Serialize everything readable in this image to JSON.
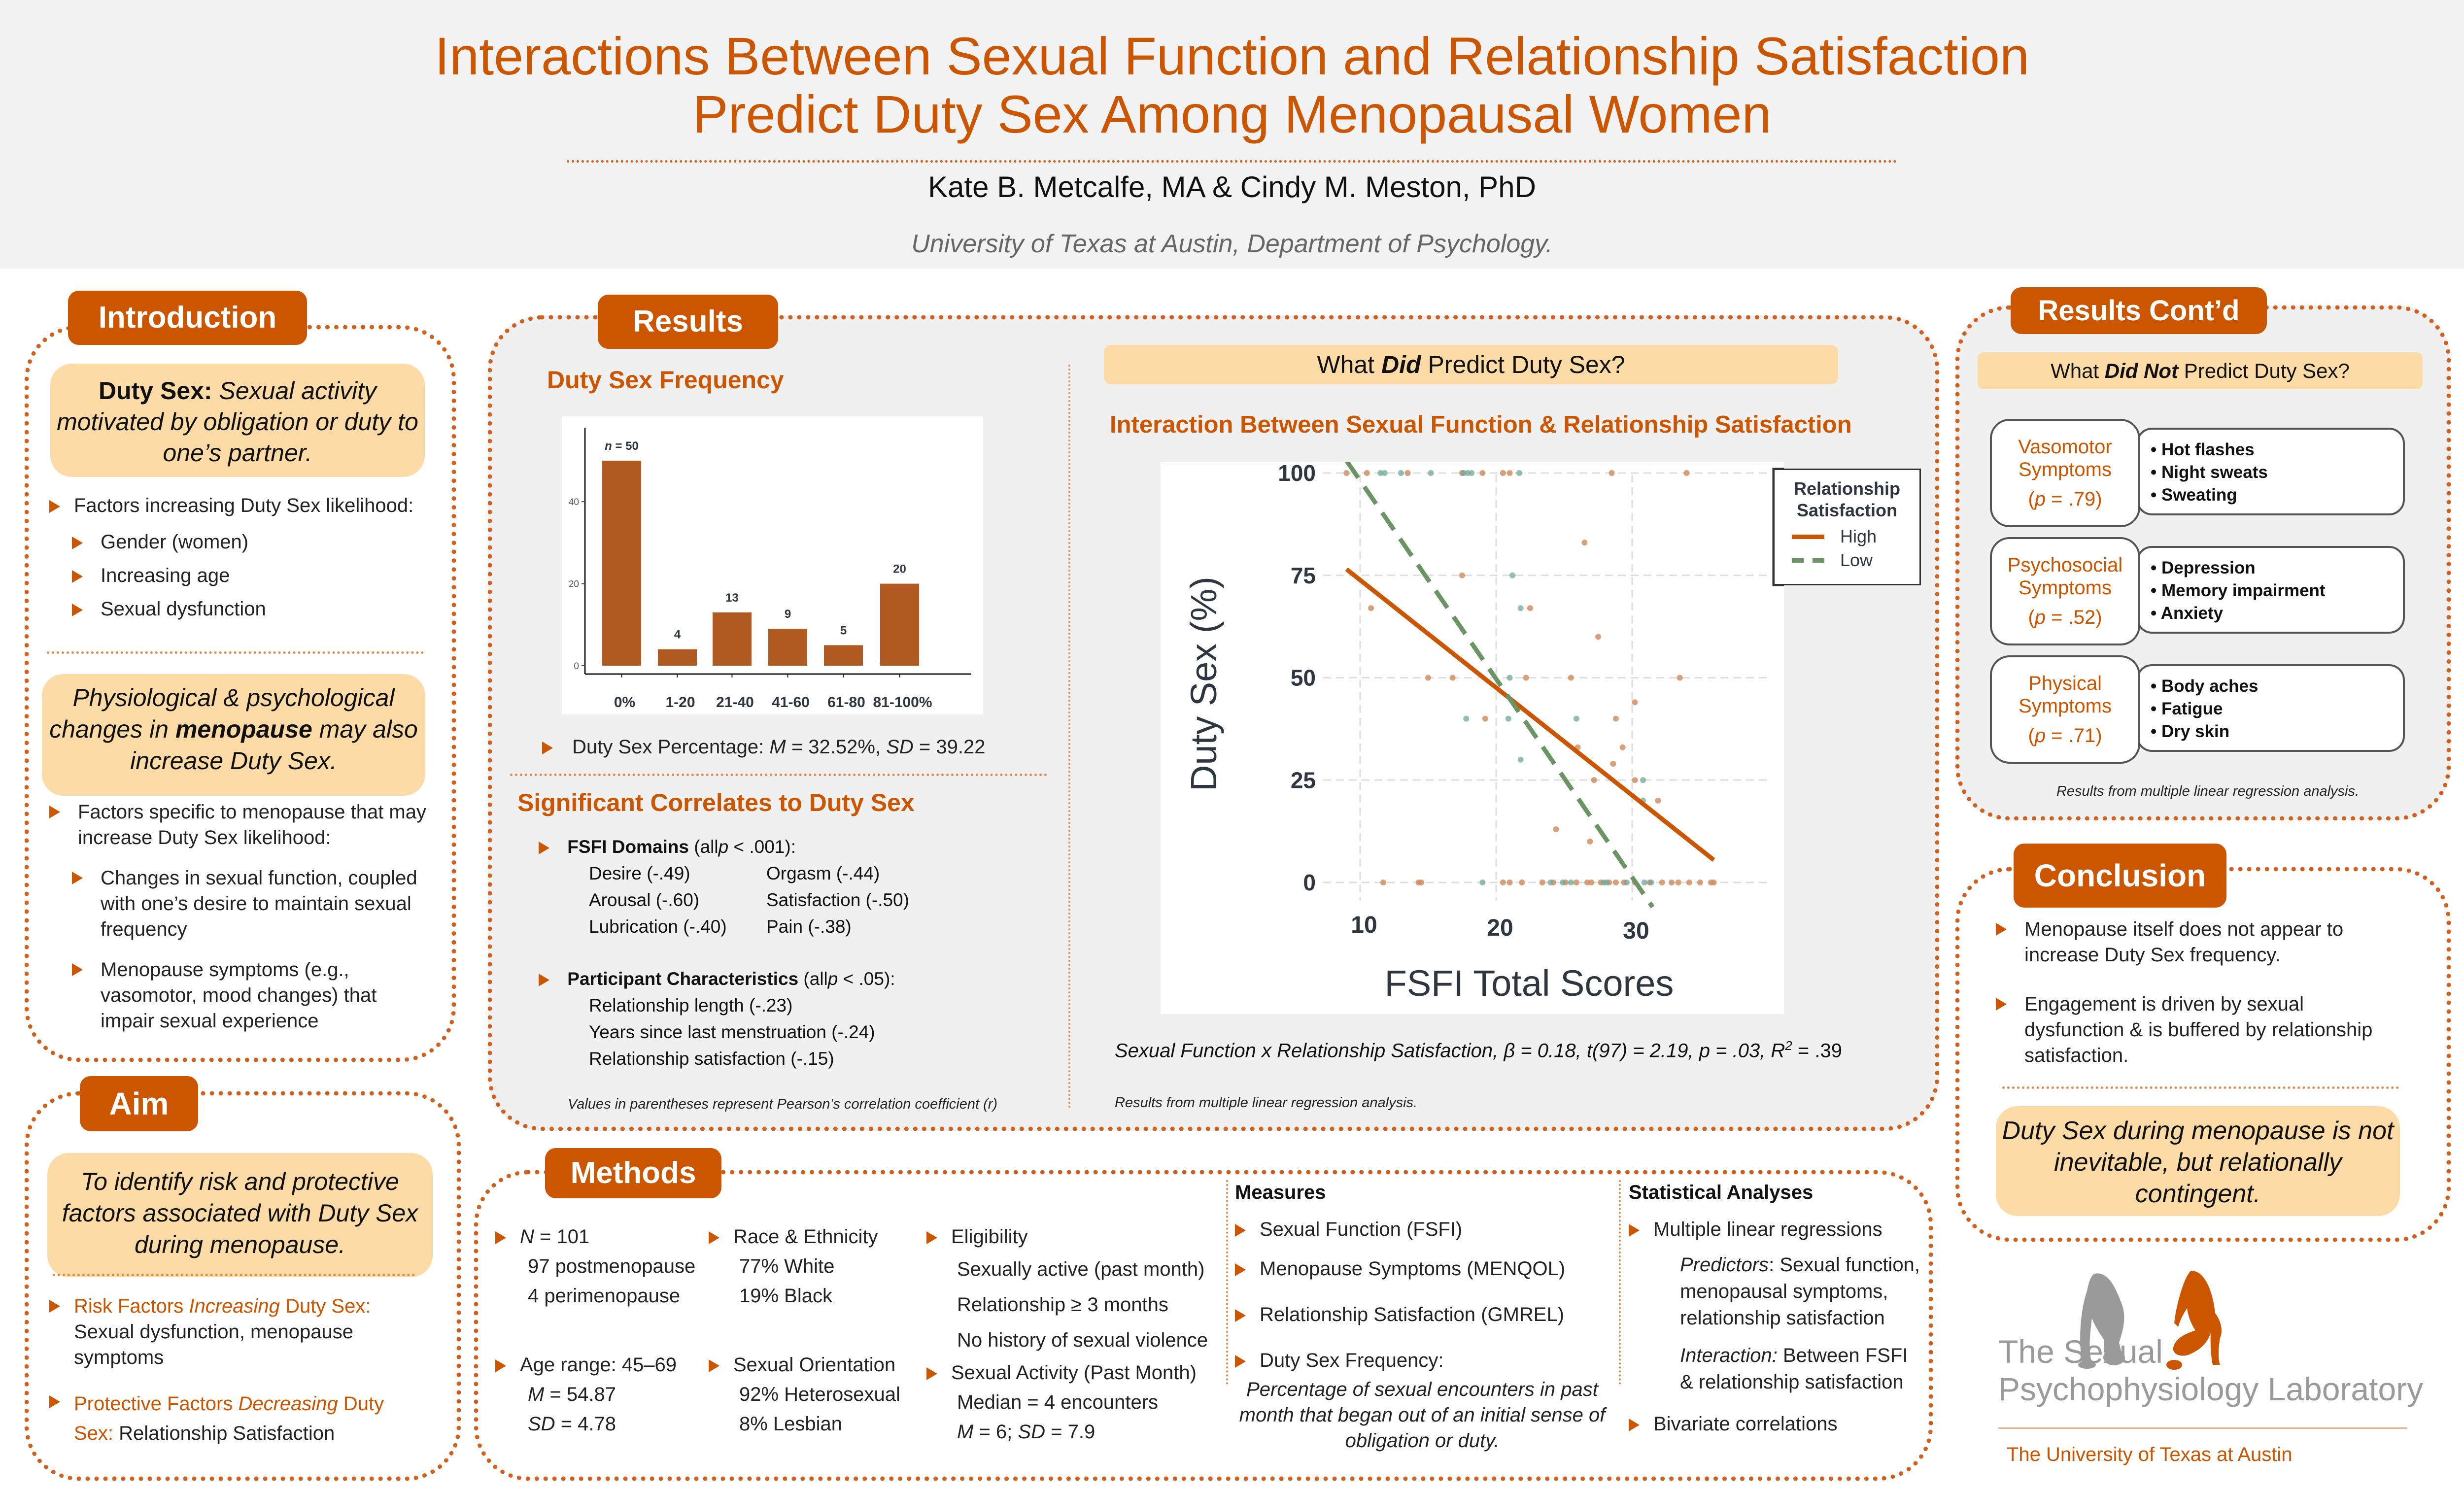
{
  "header": {
    "title_line1": "Interactions Between Sexual Function and Relationship Satisfaction",
    "title_line2": "Predict Duty Sex Among Menopausal Women",
    "authors": "Kate B. Metcalfe, MA & Cindy M. Meston, PhD",
    "affiliation": "University of Texas at Austin, Department of Psychology."
  },
  "colors": {
    "accent": "#cc5500",
    "callout": "#fddba6",
    "panel_gray": "#f0f0f0",
    "low_line": "#6b9465",
    "high_line": "#cc5500"
  },
  "introduction": {
    "tag": "Introduction",
    "definition_term": "Duty Sex:",
    "definition_text": "Sexual activity motivated by obligation or duty to one’s partner.",
    "factors_heading": "Factors increasing Duty Sex likelihood:",
    "factors": [
      "Gender (women)",
      "Increasing age",
      "Sexual dysfunction"
    ],
    "menopause_callout_pre": "Physiological & psychological changes in",
    "menopause_callout_bold": "menopause",
    "menopause_callout_post": "may also increase Duty Sex.",
    "specific_heading": "Factors specific to menopause that may increase Duty Sex likelihood:",
    "specific_factors": [
      "Changes in sexual function, coupled with one’s desire to maintain sexual frequency",
      "Menopause symptoms (e.g., vasomotor, mood changes) that impair sexual experience"
    ]
  },
  "aim": {
    "tag": "Aim",
    "callout": "To identify risk and protective factors associated with Duty Sex during menopause.",
    "risk_label_pre": "Risk Factors",
    "risk_label_ital": "Increasing",
    "risk_label_post": "Duty Sex:",
    "risk_text": "Sexual dysfunction, menopause symptoms",
    "protect_label_pre": "Protective Factors",
    "protect_label_ital": "Decreasing",
    "protect_label_post": "Duty Sex:",
    "protect_text": "Relationship Satisfaction"
  },
  "results": {
    "tag": "Results",
    "freq_heading": "Duty Sex Frequency",
    "freq_stat_pre": "Duty Sex Percentage:",
    "freq_stat_m_label": "M",
    "freq_stat_m": "= 32.52%,",
    "freq_stat_sd_label": "SD",
    "freq_stat_sd": "= 39.22",
    "corr_heading": "Significant Correlates to Duty Sex",
    "fsfi_heading_bold": "FSFI Domains",
    "fsfi_heading_rest_pre": "(all",
    "fsfi_heading_p": "p",
    "fsfi_heading_rest_post": "< .001):",
    "fsfi_items": [
      "Desire (-.49)",
      "Orgasm (-.44)",
      "Arousal (-.60)",
      "Satisfaction (-.50)",
      "Lubrication (-.40)",
      "Pain (-.38)"
    ],
    "pc_heading_bold": "Participant Characteristics",
    "pc_heading_rest_pre": "(all",
    "pc_heading_p": "p",
    "pc_heading_rest_post": "< .05):",
    "pc_items": [
      "Relationship length (-.23)",
      "Years since last menstruation (-.24)",
      "Relationship satisfaction (-.15)"
    ],
    "corr_note": "Values in parentheses represent Pearson’s correlation coefficient (r)",
    "did_pre": "What",
    "did_bold": "Did",
    "did_post": "Predict Duty Sex?",
    "interaction_heading": "Interaction Between Sexual Function & Relationship Satisfaction",
    "stat_line": "Sexual Function x Relationship Satisfaction, β = 0.18, t(97) = 2.19, p = .03, R",
    "stat_sup": "2",
    "stat_end": " = .39",
    "regression_note": "Results from multiple linear regression analysis."
  },
  "chart_data": [
    {
      "type": "bar",
      "title": "Duty Sex Frequency",
      "categories": [
        "0%",
        "1-20",
        "21-40",
        "41-60",
        "61-80",
        "81-100%"
      ],
      "values": [
        50,
        4,
        13,
        9,
        5,
        20
      ],
      "data_labels": [
        "n = 50",
        "4",
        "13",
        "9",
        "5",
        "20"
      ],
      "first_label_ital": "n",
      "first_label_rest": " = 50",
      "yticks": [
        0,
        20,
        40
      ],
      "ylim": [
        0,
        55
      ],
      "bar_color": "#b05a22"
    },
    {
      "type": "scatter",
      "xlabel": "FSFI Total Scores",
      "ylabel": "Duty Sex (%)",
      "xticks": [
        10,
        20,
        30
      ],
      "yticks": [
        0,
        25,
        50,
        75,
        100
      ],
      "xlim": [
        8.5,
        36.5
      ],
      "ylim": [
        -6,
        103
      ],
      "legend": {
        "title_line1": "Relationship",
        "title_line2": "Satisfaction",
        "entries": [
          "High",
          "Low"
        ],
        "position": "top-right"
      },
      "lines": [
        {
          "name": "High",
          "style": "solid",
          "color": "#cc5500",
          "x": [
            9,
            36
          ],
          "y": [
            76.5,
            5.5
          ]
        },
        {
          "name": "Low",
          "style": "dashed",
          "color": "#6b9465",
          "x": [
            9,
            31.5
          ],
          "y": [
            103,
            -6
          ]
        }
      ],
      "points_high": [
        [
          9,
          100
        ],
        [
          10.5,
          100
        ],
        [
          13.5,
          100
        ],
        [
          17.5,
          100
        ],
        [
          19,
          100
        ],
        [
          20.5,
          100
        ],
        [
          21,
          100
        ],
        [
          28.5,
          100
        ],
        [
          34,
          100
        ],
        [
          10.8,
          67
        ],
        [
          17.5,
          75
        ],
        [
          22.5,
          67
        ],
        [
          26.5,
          83
        ],
        [
          27.5,
          60
        ],
        [
          15,
          50
        ],
        [
          16.8,
          50
        ],
        [
          22.2,
          50
        ],
        [
          25.5,
          50
        ],
        [
          33.5,
          50
        ],
        [
          19.2,
          40
        ],
        [
          28.8,
          40
        ],
        [
          30.2,
          44
        ],
        [
          26,
          33
        ],
        [
          29.3,
          33
        ],
        [
          28.6,
          29
        ],
        [
          27.2,
          25
        ],
        [
          30.2,
          25
        ],
        [
          31.9,
          20
        ],
        [
          24.4,
          13
        ],
        [
          26.9,
          10
        ],
        [
          11.7,
          0
        ],
        [
          14.3,
          0
        ],
        [
          14.5,
          0
        ],
        [
          20.5,
          0
        ],
        [
          21,
          0
        ],
        [
          21.9,
          0
        ],
        [
          23.4,
          0
        ],
        [
          24.2,
          0
        ],
        [
          25.1,
          0
        ],
        [
          25.9,
          0
        ],
        [
          26.7,
          0
        ],
        [
          27,
          0
        ],
        [
          27.7,
          0
        ],
        [
          28.3,
          0
        ],
        [
          28.8,
          0
        ],
        [
          29.4,
          0
        ],
        [
          30.2,
          0
        ],
        [
          31.3,
          0
        ],
        [
          32.2,
          0
        ],
        [
          32.9,
          0
        ],
        [
          33.4,
          0
        ],
        [
          34.2,
          0
        ],
        [
          35,
          0
        ],
        [
          35.8,
          0
        ],
        [
          36,
          0
        ]
      ],
      "points_low": [
        [
          11.5,
          100
        ],
        [
          11.8,
          100
        ],
        [
          13,
          100
        ],
        [
          15.2,
          100
        ],
        [
          17.6,
          100
        ],
        [
          17.9,
          100
        ],
        [
          18.2,
          100
        ],
        [
          21.7,
          100
        ],
        [
          21.2,
          75
        ],
        [
          21.8,
          67
        ],
        [
          21,
          50
        ],
        [
          17.8,
          40
        ],
        [
          20.9,
          40
        ],
        [
          21.8,
          30
        ],
        [
          25.9,
          40
        ],
        [
          30.8,
          25
        ],
        [
          30.8,
          20
        ],
        [
          19,
          0
        ],
        [
          24,
          0
        ],
        [
          24.9,
          0
        ],
        [
          25.5,
          0
        ],
        [
          27.9,
          0
        ],
        [
          28.1,
          0
        ],
        [
          29.6,
          0
        ],
        [
          30.9,
          0
        ],
        [
          31.4,
          0
        ]
      ]
    }
  ],
  "results_contd": {
    "tag": "Results Cont’d",
    "did_not_pre": "What",
    "did_not_bold": "Did Not",
    "did_not_post": "Predict Duty Sex?",
    "groups": [
      {
        "name_line1": "Vasomotor",
        "name_line2": "Symptoms",
        "p_label": "p",
        "p_value": " = .79)",
        "items": [
          "Hot flashes",
          "Night sweats",
          "Sweating"
        ]
      },
      {
        "name_line1": "Psychosocial",
        "name_line2": "Symptoms",
        "p_label": "p",
        "p_value": " = .52)",
        "items": [
          "Depression",
          "Memory impairment",
          "Anxiety"
        ]
      },
      {
        "name_line1": "Physical",
        "name_line2": "Symptoms",
        "p_label": "p",
        "p_value": " = .71)",
        "items": [
          "Body aches",
          "Fatigue",
          "Dry skin"
        ]
      }
    ],
    "note": "Results from multiple linear regression analysis."
  },
  "conclusion": {
    "tag": "Conclusion",
    "points": [
      "Menopause itself does not appear to increase Duty Sex frequency.",
      "Engagement is driven by sexual dysfunction & is buffered by relationship satisfaction."
    ],
    "callout": "Duty Sex during menopause is not inevitable, but relationally contingent."
  },
  "methods": {
    "tag": "Methods",
    "sample_n_label": "N",
    "sample_n": "= 101",
    "sample_lines": [
      "97 postmenopause",
      "4 perimenopause"
    ],
    "race_heading": "Race & Ethnicity",
    "race_lines": [
      "77% White",
      "19% Black"
    ],
    "eligibility_heading": "Eligibility",
    "eligibility_lines": [
      "Sexually active (past month)",
      "Relationship ≥ 3 months",
      "No history of sexual violence"
    ],
    "age_heading": "Age range: 45–69",
    "age_m_label": "M",
    "age_m": "= 54.87",
    "age_sd_label": "SD",
    "age_sd": "= 4.78",
    "orientation_heading": "Sexual Orientation",
    "orientation_lines": [
      "92% Heterosexual",
      "8% Lesbian"
    ],
    "activity_heading": "Sexual Activity (Past Month)",
    "activity_median": "Median = 4 encounters",
    "activity_m_label": "M",
    "activity_m": "= 6;",
    "activity_sd_label": "SD",
    "activity_sd": "= 7.9",
    "measures_heading": "Measures",
    "measures": [
      "Sexual Function (FSFI)",
      "Menopause Symptoms (MENQOL)",
      "Relationship Satisfaction (GMREL)",
      "Duty Sex Frequency:"
    ],
    "duty_definition": "Percentage of sexual encounters in past month that began out of an initial sense of obligation or duty.",
    "stats_heading": "Statistical Analyses",
    "stats_item1": "Multiple linear regressions",
    "predictors_label": "Predictors",
    "predictors_text": ": Sexual function, menopausal symptoms, relationship satisfaction",
    "interaction_label": "Interaction:",
    "interaction_text": " Between FSFI & relationship satisfaction",
    "stats_item2": "Bivariate correlations"
  },
  "logo": {
    "line1": "The Sexual",
    "line2": "Psychophysiology Laboratory",
    "university": "The University of Texas at Austin"
  }
}
